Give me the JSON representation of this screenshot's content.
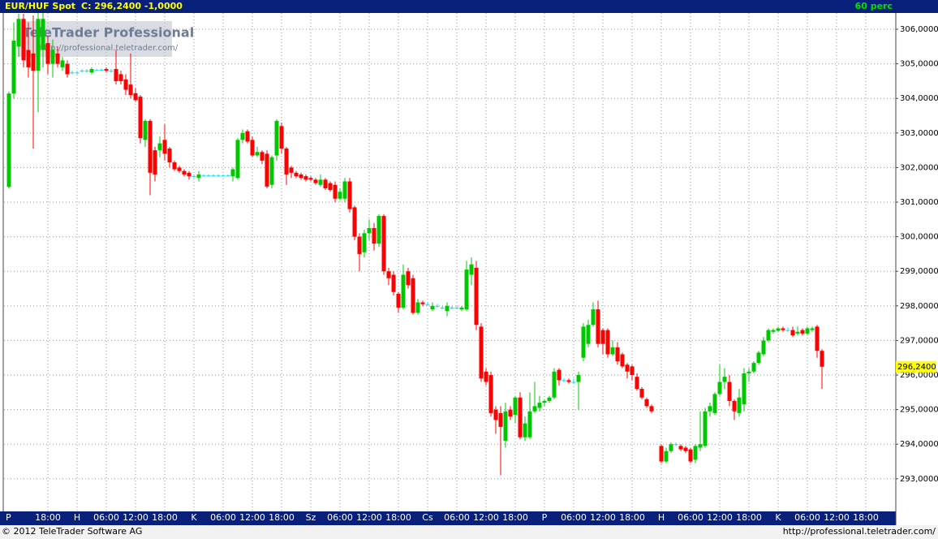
{
  "chart_data": {
    "type": "candlestick",
    "title": "EUR/HUF Spot",
    "subtitle": "C: 296,2400 -1,0000",
    "interval": "60 perc",
    "watermark": "TeleTrader Professional",
    "watermark_url": "http://professional.teletrader.com/",
    "footer_left": "© 2012 TeleTrader Software AG",
    "footer_right": "http://professional.teletrader.com/",
    "up_color": "#00c800",
    "down_color": "#ff0000",
    "flat_color": "#00e0ff",
    "grid": true,
    "last_price": {
      "value": 296.24,
      "label": "296,2400"
    },
    "ylim": [
      292.08,
      306.47
    ],
    "yticks": [
      {
        "value": 293,
        "label": "293,0000"
      },
      {
        "value": 294,
        "label": "294,0000"
      },
      {
        "value": 295,
        "label": "295,0000"
      },
      {
        "value": 296,
        "label": "296,0000"
      },
      {
        "value": 297,
        "label": "297,0000"
      },
      {
        "value": 298,
        "label": "298,0000"
      },
      {
        "value": 299,
        "label": "299,0000"
      },
      {
        "value": 300,
        "label": "300,0000"
      },
      {
        "value": 301,
        "label": "301,0000"
      },
      {
        "value": 302,
        "label": "302,0000"
      },
      {
        "value": 303,
        "label": "303,0000"
      },
      {
        "value": 304,
        "label": "304,0000"
      },
      {
        "value": 305,
        "label": "305,0000"
      },
      {
        "value": 306,
        "label": "306,0000"
      }
    ],
    "xlim": [
      9,
      192
    ],
    "xticks": [
      {
        "value": 9,
        "label": "P"
      },
      {
        "value": 18,
        "label": "18:00"
      },
      {
        "value": 24,
        "label": "H"
      },
      {
        "value": 30,
        "label": "06:00"
      },
      {
        "value": 36,
        "label": "12:00"
      },
      {
        "value": 42,
        "label": "18:00"
      },
      {
        "value": 48,
        "label": "K"
      },
      {
        "value": 54,
        "label": "06:00"
      },
      {
        "value": 60,
        "label": "12:00"
      },
      {
        "value": 66,
        "label": "18:00"
      },
      {
        "value": 72,
        "label": "Sz"
      },
      {
        "value": 78,
        "label": "06:00"
      },
      {
        "value": 84,
        "label": "12:00"
      },
      {
        "value": 90,
        "label": "18:00"
      },
      {
        "value": 96,
        "label": "Cs"
      },
      {
        "value": 102,
        "label": "06:00"
      },
      {
        "value": 108,
        "label": "12:00"
      },
      {
        "value": 114,
        "label": "18:00"
      },
      {
        "value": 120,
        "label": "P"
      },
      {
        "value": 126,
        "label": "06:00"
      },
      {
        "value": 132,
        "label": "12:00"
      },
      {
        "value": 138,
        "label": "18:00"
      },
      {
        "value": 144,
        "label": "H"
      },
      {
        "value": 150,
        "label": "06:00"
      },
      {
        "value": 156,
        "label": "12:00"
      },
      {
        "value": 162,
        "label": "18:00"
      },
      {
        "value": 168,
        "label": "K"
      },
      {
        "value": 174,
        "label": "06:00"
      },
      {
        "value": 180,
        "label": "12:00"
      },
      {
        "value": 186,
        "label": "18:00"
      }
    ],
    "x": [
      10,
      11,
      12,
      13,
      14,
      15,
      16,
      17,
      18,
      19,
      20,
      21,
      22,
      23,
      24,
      25,
      26,
      27,
      28,
      29,
      30,
      31,
      32,
      33,
      34,
      35,
      36,
      37,
      38,
      39,
      40,
      41,
      42,
      43,
      44,
      45,
      46,
      47,
      48,
      49,
      50,
      51,
      52,
      53,
      54,
      55,
      56,
      57,
      58,
      59,
      60,
      61,
      62,
      63,
      64,
      65,
      66,
      67,
      68,
      69,
      70,
      71,
      72,
      73,
      74,
      75,
      76,
      77,
      78,
      79,
      80,
      81,
      82,
      83,
      84,
      85,
      86,
      87,
      88,
      89,
      90,
      91,
      92,
      93,
      94,
      95,
      96,
      97,
      98,
      99,
      100,
      101,
      102,
      103,
      104,
      105,
      106,
      107,
      108,
      109,
      110,
      111,
      112,
      113,
      114,
      115,
      116,
      117,
      118,
      119,
      120,
      121,
      122,
      123,
      124,
      125,
      126,
      127,
      128,
      129,
      130,
      131,
      132,
      133,
      134,
      135,
      136,
      137,
      138,
      139,
      140,
      141,
      142,
      144,
      145,
      146,
      147,
      148,
      149,
      150,
      151,
      152,
      153,
      154,
      155,
      156,
      157,
      158,
      159,
      160,
      161,
      162,
      163,
      164,
      165,
      166,
      167,
      168,
      169,
      170,
      171,
      172,
      173,
      174,
      175,
      176,
      177
    ],
    "open": [
      301.44,
      304.14,
      305.5,
      306.3,
      305.4,
      305.3,
      304.8,
      305.4,
      305.6,
      305.0,
      305.3,
      304.9,
      305.0,
      304.75,
      304.75,
      304.8,
      304.8,
      304.75,
      304.82,
      304.83,
      304.85,
      304.8,
      304.85,
      304.7,
      304.55,
      304.4,
      304.15,
      304.05,
      302.8,
      303.35,
      302.5,
      302.5,
      302.8,
      302.55,
      302.15,
      302.0,
      301.9,
      301.85,
      301.75,
      301.7,
      301.77,
      301.77,
      301.77,
      301.77,
      301.77,
      301.77,
      301.75,
      301.7,
      302.8,
      303.05,
      302.8,
      302.35,
      302.45,
      302.4,
      301.5,
      302.35,
      303.2,
      302.55,
      302.0,
      301.85,
      301.8,
      301.75,
      301.7,
      301.65,
      301.5,
      301.65,
      301.55,
      301.5,
      301.1,
      301.1,
      301.6,
      300.85,
      300.0,
      299.55,
      300.1,
      300.25,
      299.8,
      300.6,
      299.0,
      298.9,
      298.35,
      297.95,
      299.0,
      298.8,
      297.8,
      298.1,
      298.05,
      297.9,
      298.0,
      297.95,
      297.85,
      297.95,
      297.95,
      297.9,
      297.9,
      298.9,
      299.1,
      297.4,
      296.1,
      296.0,
      295.0,
      294.9,
      294.1,
      295.0,
      294.85,
      295.35,
      294.2,
      294.2,
      294.95,
      295.05,
      295.2,
      295.25,
      295.35,
      296.15,
      295.85,
      295.85,
      295.8,
      295.8,
      296.5,
      296.9,
      297.45,
      297.9,
      297.3,
      297.3,
      296.6,
      296.8,
      296.6,
      296.3,
      296.25,
      295.95,
      295.6,
      295.3,
      295.1,
      293.95,
      293.5,
      293.8,
      294.0,
      293.95,
      293.9,
      293.85,
      293.55,
      293.9,
      293.95,
      294.95,
      294.9,
      295.45,
      295.8,
      295.8,
      295.25,
      294.9,
      295.15,
      296.05,
      296.1,
      296.35,
      296.6,
      297.0,
      297.25,
      297.28,
      297.35,
      297.3,
      297.3,
      297.2,
      297.3,
      297.2,
      297.3,
      297.4,
      296.7
    ],
    "high": [
      304.2,
      306.2,
      306.45,
      306.45,
      306.2,
      306.4,
      306.47,
      306.47,
      305.8,
      305.7,
      305.5,
      305.2,
      305.1,
      304.8,
      304.8,
      304.85,
      304.85,
      304.9,
      304.85,
      304.86,
      304.9,
      304.85,
      305.4,
      304.8,
      304.7,
      305.3,
      304.3,
      304.1,
      303.4,
      303.4,
      302.6,
      302.9,
      303.25,
      302.6,
      302.2,
      302.05,
      301.95,
      301.9,
      301.8,
      301.9,
      301.8,
      301.8,
      301.8,
      301.8,
      301.8,
      301.8,
      302.0,
      302.85,
      303.1,
      303.1,
      302.9,
      302.6,
      302.5,
      302.5,
      302.35,
      303.4,
      303.3,
      302.6,
      302.05,
      301.9,
      301.85,
      301.8,
      301.75,
      301.7,
      301.8,
      301.7,
      301.6,
      301.6,
      301.4,
      301.7,
      301.7,
      300.9,
      300.1,
      300.2,
      300.5,
      300.4,
      300.65,
      300.65,
      299.1,
      299.0,
      298.4,
      299.2,
      299.1,
      298.9,
      298.2,
      298.15,
      298.1,
      298.1,
      298.05,
      298.0,
      298.1,
      298.0,
      298.0,
      298.0,
      299.3,
      299.4,
      299.3,
      297.5,
      296.2,
      296.1,
      295.1,
      295.1,
      295.2,
      295.1,
      295.4,
      295.5,
      294.8,
      295.5,
      295.8,
      295.4,
      295.3,
      295.4,
      296.2,
      296.2,
      295.9,
      295.9,
      295.9,
      296.1,
      297.5,
      297.6,
      298.1,
      298.15,
      297.35,
      297.35,
      297.0,
      296.95,
      296.65,
      296.35,
      296.3,
      296.05,
      295.65,
      295.35,
      295.15,
      294.0,
      293.9,
      294.05,
      294.05,
      294.0,
      293.95,
      293.9,
      294.0,
      294.95,
      295.05,
      295.2,
      295.5,
      296.3,
      296.2,
      296.0,
      295.3,
      295.6,
      296.2,
      296.2,
      296.4,
      296.7,
      297.1,
      297.35,
      297.35,
      297.4,
      297.4,
      297.38,
      297.4,
      297.4,
      297.35,
      297.4,
      297.4,
      297.45,
      296.75
    ],
    "low": [
      301.4,
      304.0,
      305.2,
      304.9,
      304.6,
      302.55,
      303.6,
      304.9,
      304.7,
      304.6,
      304.9,
      304.8,
      304.6,
      304.7,
      304.7,
      304.75,
      304.75,
      304.7,
      304.8,
      304.8,
      304.75,
      304.75,
      304.4,
      304.4,
      304.1,
      304.0,
      303.9,
      302.7,
      302.6,
      301.2,
      301.6,
      302.3,
      302.2,
      302.0,
      301.9,
      301.85,
      301.75,
      301.65,
      301.7,
      301.6,
      301.75,
      301.75,
      301.75,
      301.75,
      301.75,
      301.75,
      301.6,
      301.65,
      302.7,
      302.7,
      302.3,
      302.3,
      302.1,
      301.4,
      301.4,
      302.2,
      302.4,
      301.5,
      301.7,
      301.7,
      301.65,
      301.6,
      301.6,
      301.5,
      301.45,
      301.35,
      301.3,
      301.0,
      301.05,
      301.0,
      300.7,
      299.9,
      299.0,
      299.4,
      299.9,
      299.6,
      299.7,
      298.9,
      298.6,
      298.3,
      297.8,
      297.9,
      298.5,
      297.75,
      297.75,
      298.0,
      298.0,
      297.85,
      297.95,
      297.9,
      297.7,
      297.9,
      297.9,
      297.85,
      297.85,
      298.6,
      297.3,
      295.8,
      295.7,
      294.8,
      294.3,
      293.1,
      293.9,
      294.7,
      294.6,
      294.15,
      294.1,
      294.15,
      294.9,
      294.95,
      295.1,
      295.2,
      295.3,
      295.7,
      295.8,
      295.75,
      295.75,
      295.0,
      296.4,
      296.8,
      297.4,
      296.8,
      296.6,
      296.5,
      296.55,
      296.3,
      296.2,
      295.9,
      295.85,
      295.55,
      295.3,
      295.05,
      294.9,
      293.45,
      293.45,
      293.75,
      293.95,
      293.8,
      293.75,
      293.45,
      293.45,
      293.8,
      293.9,
      294.8,
      294.85,
      295.4,
      295.6,
      295.1,
      294.7,
      294.8,
      294.95,
      295.8,
      296.05,
      296.3,
      296.55,
      296.95,
      297.2,
      297.25,
      297.25,
      297.25,
      297.1,
      297.15,
      297.15,
      297.15,
      297.25,
      296.5,
      295.6
    ],
    "close": [
      304.14,
      305.67,
      306.3,
      305.1,
      304.9,
      304.8,
      306.3,
      306.3,
      305.0,
      305.4,
      305.0,
      305.1,
      304.7,
      304.75,
      304.75,
      304.8,
      304.8,
      304.85,
      304.82,
      304.83,
      304.8,
      304.8,
      304.5,
      304.5,
      304.25,
      304.1,
      303.95,
      302.85,
      303.35,
      301.85,
      301.8,
      302.7,
      302.4,
      302.15,
      301.95,
      301.9,
      301.8,
      301.75,
      301.75,
      301.8,
      301.77,
      301.77,
      301.77,
      301.77,
      301.77,
      301.77,
      301.95,
      302.8,
      303.0,
      302.75,
      302.35,
      302.45,
      302.2,
      301.45,
      302.3,
      303.35,
      302.55,
      301.8,
      301.85,
      301.75,
      301.7,
      301.65,
      301.65,
      301.55,
      301.65,
      301.4,
      301.35,
      301.1,
      301.3,
      301.6,
      300.8,
      300.0,
      299.5,
      300.1,
      300.25,
      299.8,
      300.6,
      299.0,
      298.8,
      298.4,
      297.95,
      298.9,
      298.6,
      297.8,
      298.1,
      298.05,
      298.05,
      298.0,
      298.0,
      297.95,
      298.0,
      297.95,
      297.95,
      297.95,
      299.05,
      299.2,
      297.45,
      295.9,
      295.8,
      294.9,
      294.7,
      294.5,
      294.95,
      294.8,
      295.35,
      294.2,
      294.6,
      294.95,
      295.1,
      295.2,
      295.25,
      295.35,
      296.1,
      295.85,
      295.85,
      295.8,
      295.8,
      296.0,
      297.4,
      297.45,
      297.9,
      296.9,
      296.9,
      296.6,
      296.8,
      296.4,
      296.25,
      296.1,
      296.0,
      295.6,
      295.35,
      295.1,
      294.95,
      293.5,
      293.8,
      294.0,
      294.0,
      293.85,
      293.8,
      293.5,
      293.95,
      294.0,
      294.95,
      295.1,
      295.45,
      295.8,
      295.95,
      295.25,
      294.95,
      295.35,
      296.05,
      296.1,
      296.35,
      296.65,
      297.0,
      297.3,
      297.3,
      297.35,
      297.3,
      297.3,
      297.15,
      297.25,
      297.2,
      297.35,
      297.35,
      296.7,
      296.24
    ]
  }
}
